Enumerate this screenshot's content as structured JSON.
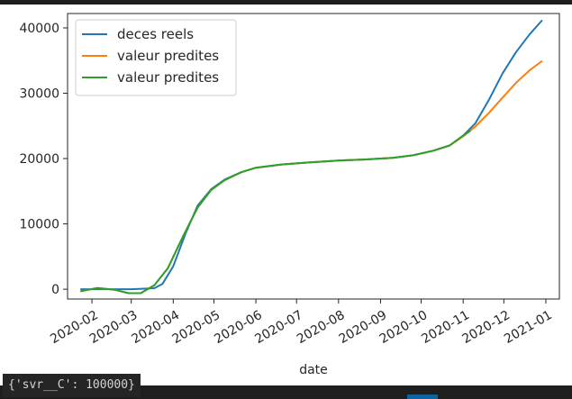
{
  "chart_data": {
    "type": "line",
    "xlabel": "date",
    "ylabel": "",
    "title": "",
    "x_ticks": [
      "2020-02",
      "2020-03",
      "2020-04",
      "2020-05",
      "2020-06",
      "2020-07",
      "2020-08",
      "2020-09",
      "2020-10",
      "2020-11",
      "2020-12",
      "2021-01"
    ],
    "y_ticks": [
      0,
      10000,
      20000,
      30000,
      40000
    ],
    "xlim": [
      "2020-01-14",
      "2021-01-11"
    ],
    "ylim": [
      -1500,
      42200
    ],
    "legend_position": "upper-left",
    "grid": false,
    "series": [
      {
        "name": "deces reels",
        "color": "#1f77b4",
        "points": [
          [
            "2020-01-24",
            0
          ],
          [
            "2020-02-10",
            0
          ],
          [
            "2020-03-01",
            0
          ],
          [
            "2020-03-18",
            150
          ],
          [
            "2020-03-24",
            800
          ],
          [
            "2020-04-01",
            3500
          ],
          [
            "2020-04-10",
            8500
          ],
          [
            "2020-04-19",
            12800
          ],
          [
            "2020-04-29",
            15300
          ],
          [
            "2020-05-09",
            16800
          ],
          [
            "2020-05-21",
            17900
          ],
          [
            "2020-06-01",
            18600
          ],
          [
            "2020-06-20",
            19100
          ],
          [
            "2020-07-10",
            19400
          ],
          [
            "2020-08-01",
            19700
          ],
          [
            "2020-08-20",
            19850
          ],
          [
            "2020-09-10",
            20100
          ],
          [
            "2020-09-25",
            20500
          ],
          [
            "2020-10-10",
            21200
          ],
          [
            "2020-10-22",
            22000
          ],
          [
            "2020-11-01",
            23500
          ],
          [
            "2020-11-10",
            25400
          ],
          [
            "2020-11-20",
            29000
          ],
          [
            "2020-11-30",
            33000
          ],
          [
            "2020-12-10",
            36300
          ],
          [
            "2020-12-20",
            39000
          ],
          [
            "2020-12-29",
            41100
          ]
        ]
      },
      {
        "name": "valeur predites",
        "color": "#ff7f0e",
        "points": [
          [
            "2020-01-24",
            -300
          ],
          [
            "2020-02-05",
            200
          ],
          [
            "2020-02-18",
            -100
          ],
          [
            "2020-02-28",
            -600
          ],
          [
            "2020-03-08",
            -600
          ],
          [
            "2020-03-18",
            600
          ],
          [
            "2020-03-28",
            3200
          ],
          [
            "2020-04-08",
            8000
          ],
          [
            "2020-04-19",
            12500
          ],
          [
            "2020-04-29",
            15200
          ],
          [
            "2020-05-09",
            16700
          ],
          [
            "2020-05-21",
            17900
          ],
          [
            "2020-06-01",
            18600
          ],
          [
            "2020-06-20",
            19100
          ],
          [
            "2020-07-10",
            19400
          ],
          [
            "2020-08-01",
            19700
          ],
          [
            "2020-08-20",
            19850
          ],
          [
            "2020-09-10",
            20100
          ],
          [
            "2020-09-25",
            20500
          ],
          [
            "2020-10-10",
            21200
          ],
          [
            "2020-10-22",
            22000
          ],
          [
            "2020-11-01",
            23400
          ],
          [
            "2020-11-10",
            24900
          ],
          [
            "2020-11-20",
            27000
          ],
          [
            "2020-11-30",
            29300
          ],
          [
            "2020-12-10",
            31600
          ],
          [
            "2020-12-20",
            33500
          ],
          [
            "2020-12-29",
            34900
          ]
        ]
      },
      {
        "name": "valeur predites",
        "color": "#2ca02c",
        "points": [
          [
            "2020-01-24",
            -300
          ],
          [
            "2020-02-05",
            200
          ],
          [
            "2020-02-18",
            -100
          ],
          [
            "2020-02-28",
            -600
          ],
          [
            "2020-03-08",
            -600
          ],
          [
            "2020-03-18",
            600
          ],
          [
            "2020-03-28",
            3200
          ],
          [
            "2020-04-08",
            8000
          ],
          [
            "2020-04-19",
            12500
          ],
          [
            "2020-04-29",
            15200
          ],
          [
            "2020-05-09",
            16700
          ],
          [
            "2020-05-21",
            17900
          ],
          [
            "2020-06-01",
            18600
          ],
          [
            "2020-06-20",
            19100
          ],
          [
            "2020-07-10",
            19400
          ],
          [
            "2020-08-01",
            19700
          ],
          [
            "2020-08-20",
            19850
          ],
          [
            "2020-09-10",
            20100
          ],
          [
            "2020-09-25",
            20500
          ],
          [
            "2020-10-10",
            21200
          ],
          [
            "2020-10-22",
            22000
          ],
          [
            "2020-11-01",
            23500
          ],
          [
            "2020-11-06",
            24200
          ]
        ]
      }
    ]
  },
  "output": {
    "text": "{'svr__C': 100000}"
  }
}
